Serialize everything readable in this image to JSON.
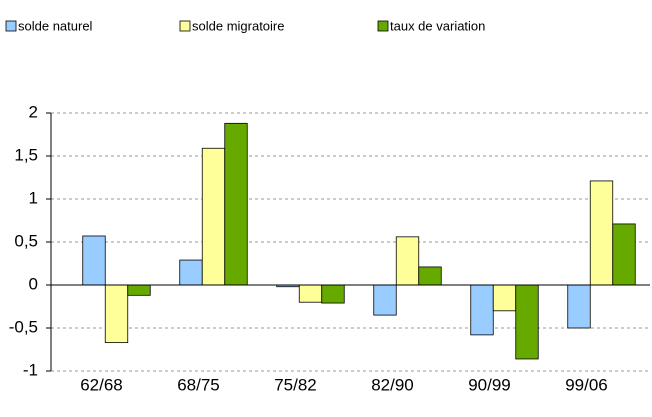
{
  "chart_data": {
    "type": "bar",
    "categories": [
      "62/68",
      "68/75",
      "75/82",
      "82/90",
      "90/99",
      "99/06"
    ],
    "series": [
      {
        "name": "solde naturel",
        "color": "#99ccff",
        "values": [
          0.57,
          0.29,
          -0.02,
          -0.35,
          -0.58,
          -0.5
        ]
      },
      {
        "name": "solde migratoire",
        "color": "#ffff99",
        "values": [
          -0.67,
          1.59,
          -0.2,
          0.56,
          -0.3,
          1.21
        ]
      },
      {
        "name": "taux de variation",
        "color": "#66aa00",
        "values": [
          -0.12,
          1.88,
          -0.21,
          0.21,
          -0.86,
          0.71
        ]
      }
    ],
    "ylim": [
      -1,
      2
    ],
    "yticks": [
      -1,
      {
        "value": -0.5,
        "label": "-0,5"
      },
      0,
      {
        "value": 0.5,
        "label": "0,5"
      },
      1,
      {
        "value": 1.5,
        "label": "1,5"
      },
      2
    ],
    "grid": true,
    "legend": "top"
  }
}
